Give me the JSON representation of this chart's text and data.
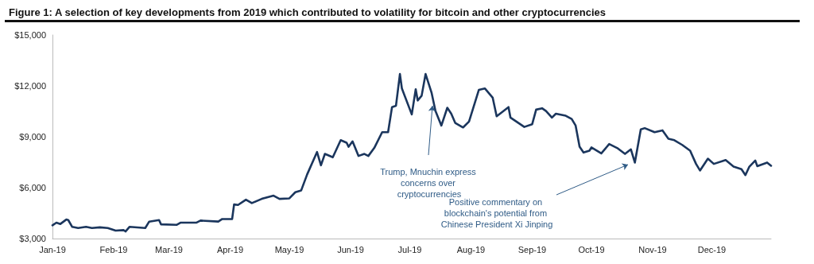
{
  "chart_data": {
    "type": "line",
    "title": "Figure 1: A selection of key developments from 2019 which contributed to volatility for bitcoin and other cryptocurrencies",
    "x": [
      "2019-01-01",
      "2019-01-03",
      "2019-01-05",
      "2019-01-08",
      "2019-01-09",
      "2019-01-11",
      "2019-01-14",
      "2019-01-18",
      "2019-01-21",
      "2019-01-25",
      "2019-01-29",
      "2019-02-02",
      "2019-02-06",
      "2019-02-07",
      "2019-02-09",
      "2019-02-17",
      "2019-02-19",
      "2019-02-24",
      "2019-02-25",
      "2019-03-05",
      "2019-03-07",
      "2019-03-15",
      "2019-03-17",
      "2019-03-26",
      "2019-03-28",
      "2019-04-02",
      "2019-04-03",
      "2019-04-05",
      "2019-04-09",
      "2019-04-12",
      "2019-04-17",
      "2019-04-23",
      "2019-04-26",
      "2019-05-01",
      "2019-05-04",
      "2019-05-07",
      "2019-05-10",
      "2019-05-15",
      "2019-05-17",
      "2019-05-19",
      "2019-05-23",
      "2019-05-27",
      "2019-05-30",
      "2019-05-31",
      "2019-06-02",
      "2019-06-05",
      "2019-06-08",
      "2019-06-10",
      "2019-06-13",
      "2019-06-17",
      "2019-06-20",
      "2019-06-22",
      "2019-06-24",
      "2019-06-26",
      "2019-06-27",
      "2019-07-02",
      "2019-07-04",
      "2019-07-05",
      "2019-07-07",
      "2019-07-09",
      "2019-07-12",
      "2019-07-14",
      "2019-07-17",
      "2019-07-20",
      "2019-07-22",
      "2019-07-24",
      "2019-07-28",
      "2019-07-31",
      "2019-08-05",
      "2019-08-08",
      "2019-08-12",
      "2019-08-14",
      "2019-08-20",
      "2019-08-21",
      "2019-08-28",
      "2019-09-01",
      "2019-09-03",
      "2019-09-06",
      "2019-09-08",
      "2019-09-11",
      "2019-09-13",
      "2019-09-18",
      "2019-09-21",
      "2019-09-23",
      "2019-09-25",
      "2019-09-27",
      "2019-09-30",
      "2019-10-01",
      "2019-10-06",
      "2019-10-10",
      "2019-10-14",
      "2019-10-18",
      "2019-10-21",
      "2019-10-23",
      "2019-10-26",
      "2019-10-28",
      "2019-11-02",
      "2019-11-06",
      "2019-11-09",
      "2019-11-12",
      "2019-11-16",
      "2019-11-20",
      "2019-11-23",
      "2019-11-25",
      "2019-11-29",
      "2019-12-02",
      "2019-12-08",
      "2019-12-12",
      "2019-12-16",
      "2019-12-18",
      "2019-12-20",
      "2019-12-23",
      "2019-12-24",
      "2019-12-29",
      "2019-12-31"
    ],
    "series": [
      {
        "color": "#1b365d",
        "values": [
          3780,
          3940,
          3860,
          4120,
          4090,
          3690,
          3620,
          3690,
          3620,
          3660,
          3620,
          3470,
          3500,
          3420,
          3690,
          3620,
          4000,
          4090,
          3840,
          3810,
          3940,
          3940,
          4060,
          4000,
          4150,
          4150,
          5010,
          4980,
          5290,
          5090,
          5340,
          5530,
          5340,
          5370,
          5730,
          5840,
          6780,
          8100,
          7320,
          7990,
          7790,
          8800,
          8650,
          8410,
          8730,
          7870,
          7990,
          7870,
          8340,
          9270,
          9270,
          10750,
          10830,
          12700,
          11850,
          10320,
          11800,
          11140,
          11420,
          12700,
          11610,
          10520,
          9660,
          10710,
          10360,
          9820,
          9550,
          9900,
          11770,
          11850,
          11300,
          10210,
          10750,
          10130,
          9580,
          9740,
          10600,
          10680,
          10520,
          10130,
          10360,
          10240,
          10050,
          9660,
          8410,
          8070,
          8180,
          8370,
          8020,
          8570,
          8340,
          7990,
          8260,
          7480,
          9430,
          9510,
          9270,
          9380,
          8880,
          8800,
          8520,
          8180,
          7400,
          7010,
          7710,
          7400,
          7630,
          7240,
          7090,
          6740,
          7240,
          7600,
          7270,
          7480,
          7290
        ]
      }
    ],
    "xlim": [
      "2019-01-01",
      "2019-12-31"
    ],
    "xticks": [
      {
        "value": "2019-01",
        "label": "Jan-19"
      },
      {
        "value": "2019-02",
        "label": "Feb-19"
      },
      {
        "value": "2019-03",
        "label": "Mar-19"
      },
      {
        "value": "2019-04",
        "label": "Apr-19"
      },
      {
        "value": "2019-05",
        "label": "May-19"
      },
      {
        "value": "2019-06",
        "label": "Jun-19"
      },
      {
        "value": "2019-07",
        "label": "Jul-19"
      },
      {
        "value": "2019-08",
        "label": "Aug-19"
      },
      {
        "value": "2019-09",
        "label": "Sep-19"
      },
      {
        "value": "2019-10",
        "label": "Oct-19"
      },
      {
        "value": "2019-11",
        "label": "Nov-19"
      },
      {
        "value": "2019-12",
        "label": "Dec-19"
      }
    ],
    "ylim": [
      3000,
      15000
    ],
    "yticks": [
      {
        "value": 3000,
        "label": "$3,000"
      },
      {
        "value": 6000,
        "label": "$6,000"
      },
      {
        "value": 9000,
        "label": "$9,000"
      },
      {
        "value": 12000,
        "label": "$12,000"
      },
      {
        "value": 15000,
        "label": "$15,000"
      }
    ],
    "annotations": [
      "Trump, Mnuchin express concerns over cryptocurrencies",
      "Positive commentary on blockchain's potential from Chinese President Xi Jinping"
    ],
    "grid": false,
    "marker": "none",
    "line_style": "solid"
  }
}
